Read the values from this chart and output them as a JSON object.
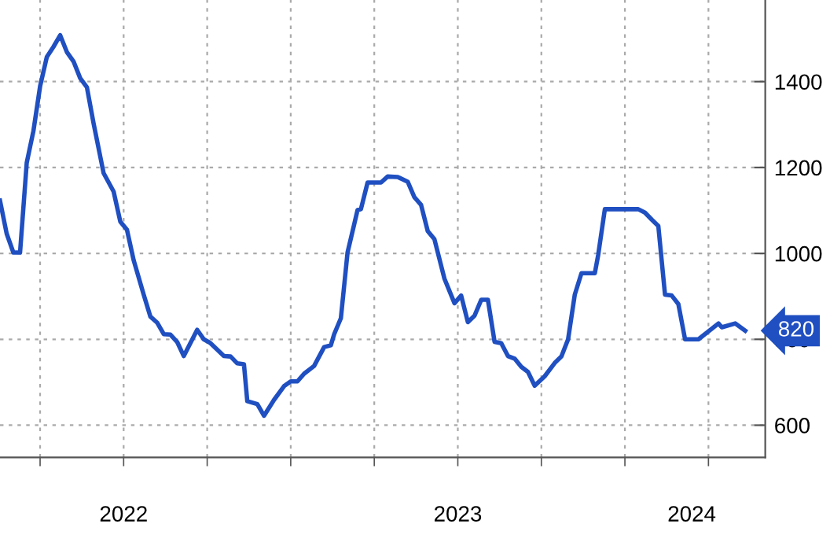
{
  "chart_data": {
    "type": "line",
    "x": [
      2022.13,
      2022.15,
      2022.17,
      2022.19,
      2022.21,
      2022.23,
      2022.25,
      2022.27,
      2022.29,
      2022.31,
      2022.33,
      2022.35,
      2022.37,
      2022.39,
      2022.41,
      2022.44,
      2022.47,
      2022.49,
      2022.51,
      2022.53,
      2022.56,
      2022.58,
      2022.6,
      2022.62,
      2022.64,
      2022.66,
      2022.68,
      2022.72,
      2022.74,
      2022.76,
      2022.8,
      2022.82,
      2022.84,
      2022.86,
      2022.87,
      2022.9,
      2022.92,
      2022.95,
      2022.98,
      2023.0,
      2023.02,
      2023.04,
      2023.07,
      2023.1,
      2023.12,
      2023.13,
      2023.15,
      2023.17,
      2023.2,
      2023.21,
      2023.23,
      2023.27,
      2023.29,
      2023.32,
      2023.35,
      2023.37,
      2023.39,
      2023.41,
      2023.43,
      2023.46,
      2023.49,
      2023.51,
      2023.53,
      2023.55,
      2023.57,
      2023.59,
      2023.61,
      2023.63,
      2023.65,
      2023.67,
      2023.69,
      2023.71,
      2023.73,
      2023.76,
      2023.79,
      2023.81,
      2023.83,
      2023.85,
      2023.87,
      2023.91,
      2023.92,
      2023.94,
      2024.04,
      2024.06,
      2024.08,
      2024.1,
      2024.12,
      2024.14,
      2024.16,
      2024.18,
      2024.22,
      2024.28,
      2024.29,
      2024.33,
      2024.36
    ],
    "series": [
      {
        "color": "#1f4fc1",
        "values": [
          1123,
          1046,
          1002,
          1002,
          1211,
          1285,
          1389,
          1457,
          1481,
          1508,
          1469,
          1447,
          1408,
          1387,
          1303,
          1187,
          1144,
          1074,
          1055,
          984,
          904,
          853,
          839,
          812,
          811,
          794,
          761,
          822,
          800,
          791,
          761,
          760,
          744,
          742,
          656,
          649,
          622,
          659,
          691,
          702,
          702,
          720,
          738,
          782,
          786,
          812,
          849,
          1002,
          1101,
          1103,
          1165,
          1165,
          1179,
          1178,
          1167,
          1131,
          1113,
          1052,
          1033,
          941,
          884,
          902,
          840,
          855,
          892,
          892,
          794,
          791,
          761,
          755,
          736,
          724,
          692,
          714,
          745,
          760,
          800,
          904,
          954,
          954,
          996,
          1103,
          1103,
          1095,
          1079,
          1064,
          904,
          902,
          882,
          800,
          800,
          837,
          828,
          837,
          820
        ]
      }
    ],
    "xlim": [
      2022.13,
      2024.42
    ],
    "xticks": [
      {
        "value": 2022.25,
        "label": null
      },
      {
        "value": 2022.5,
        "label": null
      },
      {
        "value": 2022.75,
        "label": null
      },
      {
        "value": 2023.0,
        "label": null
      },
      {
        "value": 2023.25,
        "label": null
      },
      {
        "value": 2023.5,
        "label": null
      },
      {
        "value": 2023.75,
        "label": null
      },
      {
        "value": 2024.0,
        "label": null
      },
      {
        "value": 2024.25,
        "label": null
      },
      {
        "value": 2022.5,
        "label": "2022"
      },
      {
        "value": 2023.5,
        "label": "2023"
      },
      {
        "value": 2024.2,
        "label": "2024"
      }
    ],
    "ylim": [
      525,
      1590
    ],
    "yticks": [
      600,
      800,
      1000,
      1200,
      1400
    ],
    "grid": true,
    "line_style": "solid",
    "marker": "none",
    "annotations": [
      {
        "text": "820",
        "x": 2024.36,
        "y": 820
      }
    ]
  }
}
